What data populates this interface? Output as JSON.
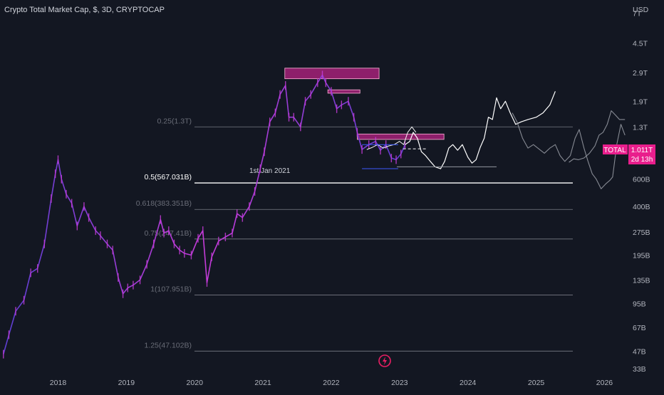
{
  "header": {
    "title": "Crypto Total Market Cap, $, 3D, CRYPTOCAP"
  },
  "colors": {
    "background": "#131722",
    "candle": "#c43bd8",
    "candle_alt": "#5d3fd3",
    "projection": "#ffffff",
    "fib_line": "#787b86",
    "zone": "#8e1f6b",
    "badge": "#e91e8c"
  },
  "annotations": {
    "date_note": "1st Jan 2021"
  },
  "price_badge": {
    "ticker": "TOTAL",
    "value": "1.011T",
    "countdown": "2d 13h"
  },
  "chart_data": {
    "type": "line",
    "title": "Crypto Total Market Cap, $, 3D, CRYPTOCAP",
    "y_unit": "USD",
    "y_scale": "log",
    "ylim": [
      32000000000.0,
      8500000000000.0
    ],
    "xlim": [
      2017.15,
      2026.35
    ],
    "x_ticks": [
      "2018",
      "2019",
      "2020",
      "2021",
      "2022",
      "2023",
      "2024",
      "2025",
      "2026"
    ],
    "y_ticks": [
      "7T",
      "4.5T",
      "2.9T",
      "1.9T",
      "1.3T",
      "600B",
      "400B",
      "275B",
      "195B",
      "135B",
      "95B",
      "67B",
      "47B",
      "33B"
    ],
    "fib_levels": [
      {
        "label": "0.25(1.3T)",
        "value": 1300000000000.0,
        "bold": false
      },
      {
        "label": "0.5(567.031B)",
        "value": 567031000000.0,
        "bold": true
      },
      {
        "label": "0.618(383.351B)",
        "value": 383351000000.0,
        "bold": false
      },
      {
        "label": "0.75(247.41B)",
        "value": 247410000000.0,
        "bold": false
      },
      {
        "label": "1(107.951B)",
        "value": 107951000000.0,
        "bold": false
      },
      {
        "label": "1.25(47.102B)",
        "value": 47102000000.0,
        "bold": false
      }
    ],
    "series": [
      {
        "values": [
          [
            2017.2,
            45000000000.0
          ],
          [
            2017.28,
            60000000000.0
          ],
          [
            2017.38,
            85000000000.0
          ],
          [
            2017.5,
            100000000000.0
          ],
          [
            2017.6,
            150000000000.0
          ],
          [
            2017.7,
            160000000000.0
          ],
          [
            2017.8,
            230000000000.0
          ],
          [
            2017.9,
            450000000000.0
          ],
          [
            2017.96,
            650000000000.0
          ],
          [
            2018.0,
            800000000000.0
          ],
          [
            2018.05,
            600000000000.0
          ],
          [
            2018.12,
            480000000000.0
          ],
          [
            2018.2,
            420000000000.0
          ],
          [
            2018.28,
            300000000000.0
          ],
          [
            2018.38,
            400000000000.0
          ],
          [
            2018.45,
            340000000000.0
          ],
          [
            2018.55,
            280000000000.0
          ],
          [
            2018.62,
            260000000000.0
          ],
          [
            2018.72,
            230000000000.0
          ],
          [
            2018.8,
            210000000000.0
          ],
          [
            2018.88,
            140000000000.0
          ],
          [
            2018.95,
            110000000000.0
          ],
          [
            2019.02,
            120000000000.0
          ],
          [
            2019.1,
            125000000000.0
          ],
          [
            2019.2,
            135000000000.0
          ],
          [
            2019.3,
            170000000000.0
          ],
          [
            2019.4,
            230000000000.0
          ],
          [
            2019.5,
            330000000000.0
          ],
          [
            2019.55,
            270000000000.0
          ],
          [
            2019.62,
            280000000000.0
          ],
          [
            2019.7,
            230000000000.0
          ],
          [
            2019.78,
            210000000000.0
          ],
          [
            2019.85,
            200000000000.0
          ],
          [
            2019.95,
            195000000000.0
          ],
          [
            2020.05,
            250000000000.0
          ],
          [
            2020.12,
            280000000000.0
          ],
          [
            2020.18,
            130000000000.0
          ],
          [
            2020.25,
            190000000000.0
          ],
          [
            2020.35,
            240000000000.0
          ],
          [
            2020.45,
            255000000000.0
          ],
          [
            2020.55,
            270000000000.0
          ],
          [
            2020.62,
            360000000000.0
          ],
          [
            2020.7,
            340000000000.0
          ],
          [
            2020.8,
            400000000000.0
          ],
          [
            2020.88,
            500000000000.0
          ],
          [
            2020.96,
            700000000000.0
          ],
          [
            2021.02,
            900000000000.0
          ],
          [
            2021.1,
            1400000000000.0
          ],
          [
            2021.18,
            1600000000000.0
          ],
          [
            2021.25,
            2100000000000.0
          ],
          [
            2021.33,
            2400000000000.0
          ],
          [
            2021.38,
            1500000000000.0
          ],
          [
            2021.45,
            1500000000000.0
          ],
          [
            2021.55,
            1300000000000.0
          ],
          [
            2021.62,
            1900000000000.0
          ],
          [
            2021.7,
            2100000000000.0
          ],
          [
            2021.8,
            2500000000000.0
          ],
          [
            2021.87,
            2800000000000.0
          ],
          [
            2021.92,
            2500000000000.0
          ],
          [
            2022.0,
            2200000000000.0
          ],
          [
            2022.08,
            1700000000000.0
          ],
          [
            2022.15,
            1800000000000.0
          ],
          [
            2022.25,
            1900000000000.0
          ],
          [
            2022.33,
            1500000000000.0
          ],
          [
            2022.38,
            1200000000000.0
          ],
          [
            2022.45,
            930000000000.0
          ],
          [
            2022.55,
            1000000000000.0
          ],
          [
            2022.65,
            1050000000000.0
          ],
          [
            2022.72,
            920000000000.0
          ],
          [
            2022.8,
            1000000000000.0
          ],
          [
            2022.88,
            820000000000.0
          ],
          [
            2022.95,
            800000000000.0
          ],
          [
            2023.02,
            870000000000.0
          ],
          [
            2023.08,
            1000000000000.0
          ]
        ]
      },
      {
        "values": [
          [
            2023.08,
            1000000000000.0
          ],
          [
            2023.15,
            1050000000000.0
          ],
          [
            2023.2,
            1200000000000.0
          ],
          [
            2023.26,
            1100000000000.0
          ],
          [
            2023.32,
            900000000000.0
          ],
          [
            2023.38,
            850000000000.0
          ],
          [
            2023.45,
            780000000000.0
          ],
          [
            2023.52,
            720000000000.0
          ],
          [
            2023.6,
            700000000000.0
          ],
          [
            2023.66,
            780000000000.0
          ],
          [
            2023.72,
            950000000000.0
          ],
          [
            2023.78,
            1000000000000.0
          ],
          [
            2023.85,
            920000000000.0
          ],
          [
            2023.92,
            1000000000000.0
          ],
          [
            2024.0,
            830000000000.0
          ],
          [
            2024.06,
            760000000000.0
          ],
          [
            2024.12,
            800000000000.0
          ],
          [
            2024.18,
            960000000000.0
          ],
          [
            2024.24,
            1100000000000.0
          ],
          [
            2024.3,
            1500000000000.0
          ],
          [
            2024.36,
            1450000000000.0
          ],
          [
            2024.42,
            2000000000000.0
          ],
          [
            2024.48,
            1700000000000.0
          ],
          [
            2024.55,
            1900000000000.0
          ],
          [
            2024.62,
            1600000000000.0
          ],
          [
            2024.7,
            1350000000000.0
          ],
          [
            2024.78,
            1400000000000.0
          ],
          [
            2024.88,
            1450000000000.0
          ],
          [
            2025.0,
            1500000000000.0
          ],
          [
            2025.1,
            1600000000000.0
          ],
          [
            2025.2,
            1800000000000.0
          ],
          [
            2025.28,
            2200000000000.0
          ]
        ]
      },
      {
        "values": [
          [
            2024.65,
            1600000000000.0
          ],
          [
            2024.72,
            1400000000000.0
          ],
          [
            2024.8,
            1100000000000.0
          ],
          [
            2024.88,
            950000000000.0
          ],
          [
            2024.96,
            1000000000000.0
          ],
          [
            2025.05,
            930000000000.0
          ],
          [
            2025.12,
            880000000000.0
          ],
          [
            2025.2,
            950000000000.0
          ],
          [
            2025.28,
            1000000000000.0
          ],
          [
            2025.35,
            850000000000.0
          ],
          [
            2025.42,
            780000000000.0
          ],
          [
            2025.5,
            850000000000.0
          ],
          [
            2025.57,
            1100000000000.0
          ],
          [
            2025.63,
            1250000000000.0
          ],
          [
            2025.7,
            950000000000.0
          ],
          [
            2025.76,
            780000000000.0
          ],
          [
            2025.82,
            650000000000.0
          ],
          [
            2025.88,
            600000000000.0
          ],
          [
            2025.95,
            520000000000.0
          ],
          [
            2026.02,
            560000000000.0
          ],
          [
            2026.08,
            590000000000.0
          ],
          [
            2026.12,
            620000000000.0
          ],
          [
            2026.18,
            1000000000000.0
          ],
          [
            2026.24,
            1350000000000.0
          ],
          [
            2026.3,
            1150000000000.0
          ]
        ]
      },
      {
        "values": [
          [
            2022.52,
            930000000000.0
          ],
          [
            2022.6,
            960000000000.0
          ],
          [
            2022.68,
            1000000000000.0
          ],
          [
            2022.76,
            950000000000.0
          ],
          [
            2022.84,
            980000000000.0
          ],
          [
            2022.92,
            1000000000000.0
          ],
          [
            2023.0,
            1050000000000.0
          ],
          [
            2023.06,
            1000000000000.0
          ],
          [
            2023.12,
            1200000000000.0
          ],
          [
            2023.18,
            1300000000000.0
          ],
          [
            2023.24,
            1200000000000.0
          ]
        ]
      },
      {
        "values": [
          [
            2025.48,
            770000000000.0
          ],
          [
            2025.55,
            810000000000.0
          ],
          [
            2025.62,
            800000000000.0
          ],
          [
            2025.7,
            820000000000.0
          ],
          [
            2025.78,
            880000000000.0
          ],
          [
            2025.86,
            980000000000.0
          ],
          [
            2025.92,
            1150000000000.0
          ],
          [
            2025.98,
            1200000000000.0
          ],
          [
            2026.04,
            1350000000000.0
          ],
          [
            2026.1,
            1650000000000.0
          ],
          [
            2026.16,
            1550000000000.0
          ],
          [
            2026.22,
            1450000000000.0
          ],
          [
            2026.3,
            1450000000000.0
          ]
        ]
      }
    ],
    "zones": [
      {
        "x0": 2021.32,
        "x1": 2022.7,
        "y0": 2650000000000.0,
        "y1": 3100000000000.0
      },
      {
        "x0": 2021.95,
        "x1": 2022.42,
        "y0": 2140000000000.0,
        "y1": 2250000000000.0
      },
      {
        "x0": 2022.38,
        "x1": 2023.65,
        "y0": 1080000000000.0,
        "y1": 1170000000000.0
      }
    ],
    "box_lines": [
      {
        "x0": 2022.45,
        "x1": 2022.98,
        "y": 1000000000000.0,
        "color": "#3d5afe"
      },
      {
        "x0": 2022.45,
        "x1": 2022.98,
        "y": 700000000000.0,
        "color": "#3d5afe"
      },
      {
        "x0": 2023.05,
        "x1": 2023.4,
        "y": 940000000000.0,
        "color": "#ffffff",
        "dashed": true
      },
      {
        "x0": 2022.96,
        "x1": 2024.42,
        "y": 720000000000.0,
        "color": "#9598a1"
      }
    ]
  }
}
